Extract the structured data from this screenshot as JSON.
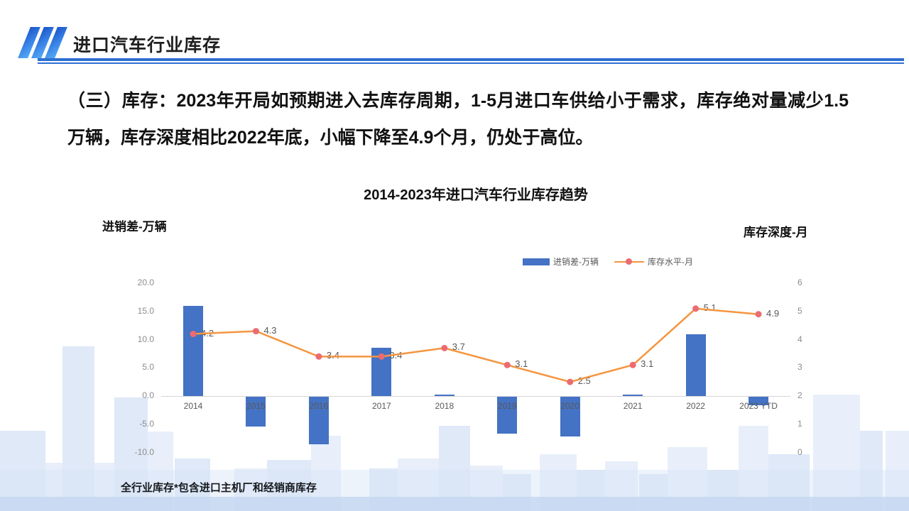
{
  "header": {
    "title": "进口汽车行业库存"
  },
  "body_text": {
    "paragraph": "（三）库存：2023年开局如预期进入去库存周期，1-5月进口车供给小于需求，库存绝对量减少1.5万辆，库存深度相比2022年底，小幅下降至4.9个月，仍处于高位。"
  },
  "footnote": "全行业库存*包含进口主机厂和经销商库存",
  "chart_data": {
    "type": "bar",
    "subtype": "bar-line-combo",
    "title": "2014-2023年进口汽车行业库存趋势",
    "categories": [
      "2014",
      "2015",
      "2016",
      "2017",
      "2018",
      "2019",
      "2020",
      "2021",
      "2022",
      "2023 YTD"
    ],
    "series": [
      {
        "name": "进销差-万辆",
        "type": "bar",
        "axis": "left",
        "color": "#4472C4",
        "values": [
          16.0,
          -5.3,
          -8.4,
          8.5,
          0.2,
          -6.5,
          -7.0,
          0.2,
          11.0,
          -1.5
        ]
      },
      {
        "name": "库存水平-月",
        "type": "line",
        "axis": "right",
        "color": "#F5953F",
        "marker_color": "#EC6B72",
        "values": [
          4.2,
          4.3,
          3.4,
          3.4,
          3.7,
          3.1,
          2.5,
          3.1,
          5.1,
          4.9
        ],
        "labels": [
          "4.2",
          "4.3",
          "3.4",
          "3.4",
          "3.7",
          "3.1",
          "2.5",
          "3.1",
          "5.1",
          "4.9"
        ]
      }
    ],
    "left_axis": {
      "label": "进销差-万辆",
      "min": -10,
      "max": 20,
      "ticks": [
        "20.0",
        "15.0",
        "10.0",
        "5.0",
        "0.0",
        "-5.0",
        "-10.0"
      ]
    },
    "right_axis": {
      "label": "库存深度-月",
      "min": 0,
      "max": 6,
      "ticks": [
        "6",
        "5",
        "4",
        "3",
        "2",
        "1",
        "0"
      ]
    },
    "legend": {
      "position": "top-right-of-plot",
      "entries": [
        "进销差-万辆",
        "库存水平-月"
      ]
    },
    "gridlines": false
  }
}
